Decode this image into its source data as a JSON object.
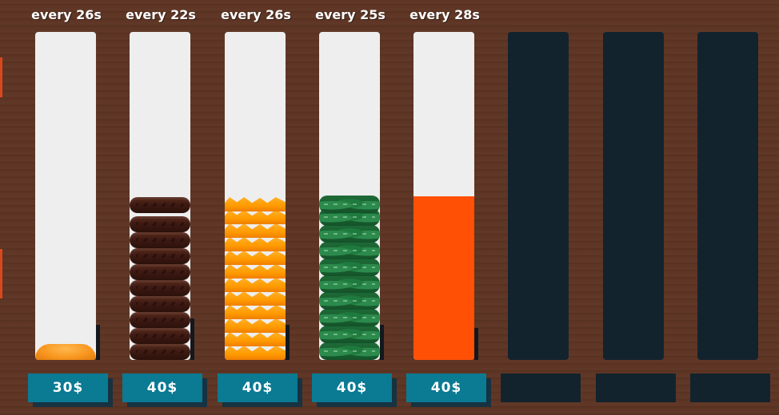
{
  "columns": [
    {
      "rate": "every 26s",
      "price": "30$",
      "ingredient": "bun",
      "fill_percent": 5,
      "locked": false
    },
    {
      "rate": "every 22s",
      "price": "40$",
      "ingredient": "patty",
      "fill_percent": 50,
      "locked": false
    },
    {
      "rate": "every 26s",
      "price": "40$",
      "ingredient": "cheese",
      "fill_percent": 50,
      "locked": false
    },
    {
      "rate": "every 25s",
      "price": "40$",
      "ingredient": "lettuce",
      "fill_percent": 50,
      "locked": false
    },
    {
      "rate": "every 28s",
      "price": "40$",
      "ingredient": "sauce",
      "fill_percent": 50,
      "locked": false
    },
    {
      "rate": "",
      "price": "",
      "ingredient": "",
      "fill_percent": 0,
      "locked": true
    },
    {
      "rate": "",
      "price": "",
      "ingredient": "",
      "fill_percent": 0,
      "locked": true
    },
    {
      "rate": "",
      "price": "",
      "ingredient": "",
      "fill_percent": 0,
      "locked": true
    }
  ],
  "colors": {
    "background": "#5e3524",
    "tube": "#eeeeee",
    "locked": "#13232e",
    "button": "#0b7a93",
    "sauce": "#ff5006"
  }
}
